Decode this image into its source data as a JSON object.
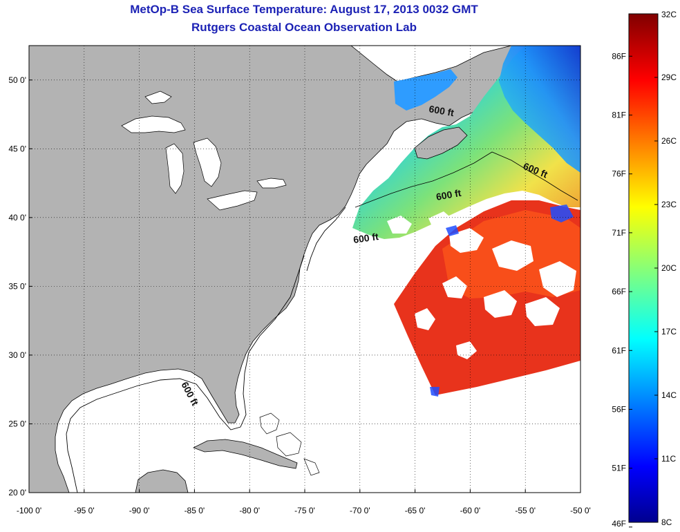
{
  "title": {
    "line1": "MetOp-B Sea Surface Temperature:  August 17, 2013 0032 GMT",
    "line2": "Rutgers Coastal Ocean Observation Lab"
  },
  "map": {
    "lon_range": [
      -100,
      -50
    ],
    "lat_range": [
      20,
      52.5
    ],
    "x_ticks": [
      "-100 0'",
      "-95 0'",
      "-90 0'",
      "-85 0'",
      "-80 0'",
      "-75 0'",
      "-70 0'",
      "-65 0'",
      "-60 0'",
      "-55 0'",
      "-50 0'"
    ],
    "x_tick_values": [
      -100,
      -95,
      -90,
      -85,
      -80,
      -75,
      -70,
      -65,
      -60,
      -55,
      -50
    ],
    "y_ticks": [
      "20 0'",
      "25 0'",
      "30 0'",
      "35 0'",
      "40 0'",
      "45 0'",
      "50 0'"
    ],
    "y_tick_values": [
      20,
      25,
      30,
      35,
      40,
      45,
      50
    ],
    "grid": "dotted",
    "land_color": "#b3b3b3",
    "no_data_color": "#ffffff",
    "contour_label": "600 ft"
  },
  "colorbar": {
    "celsius_labels": [
      "32C",
      "29C",
      "26C",
      "23C",
      "20C",
      "17C",
      "14C",
      "11C",
      "8C"
    ],
    "celsius_values": [
      32,
      29,
      26,
      23,
      20,
      17,
      14,
      11,
      8
    ],
    "fahrenheit_labels": [
      "86F",
      "81F",
      "76F",
      "71F",
      "66F",
      "61F",
      "56F",
      "51F",
      "46F"
    ],
    "fahrenheit_values": [
      86,
      81,
      76,
      71,
      66,
      61,
      56,
      51,
      46
    ],
    "range_c": [
      8,
      32
    ],
    "colormap": "jet"
  }
}
